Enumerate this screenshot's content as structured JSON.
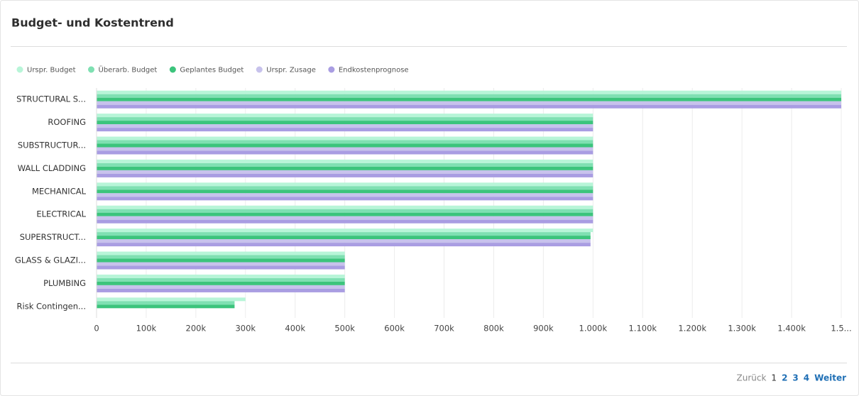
{
  "chart_data": {
    "type": "hbar",
    "title": "Budget- und Kostentrend",
    "categories": [
      "STRUCTURAL S...",
      "ROOFING",
      "SUBSTRUCTUR...",
      "WALL CLADDING",
      "MECHANICAL",
      "ELECTRICAL",
      "SUPERSTRUCT...",
      "GLASS & GLAZI...",
      "PLUMBING",
      "Risk Contingen..."
    ],
    "series": [
      {
        "name": "Urspr. Budget",
        "color": "#b8f5d8",
        "values": [
          1500000,
          1000000,
          1000000,
          1000000,
          1000000,
          1000000,
          1000000,
          500000,
          500000,
          300000
        ]
      },
      {
        "name": "Überarb. Budget",
        "color": "#7fe0b2",
        "values": [
          1500000,
          1000000,
          1000000,
          1000000,
          1000000,
          1000000,
          995000,
          500000,
          500000,
          278000
        ]
      },
      {
        "name": "Geplantes Budget",
        "color": "#3cc47c",
        "values": [
          1500000,
          1000000,
          1000000,
          1000000,
          1000000,
          1000000,
          995000,
          500000,
          500000,
          278000
        ]
      },
      {
        "name": "Urspr. Zusage",
        "color": "#c7c2ec",
        "values": [
          1500000,
          1000000,
          1000000,
          1000000,
          1000000,
          1000000,
          995000,
          500000,
          500000,
          0
        ]
      },
      {
        "name": "Endkostenprognose",
        "color": "#a99de2",
        "values": [
          1500000,
          1000000,
          1000000,
          1000000,
          1000000,
          1000000,
          995000,
          500000,
          500000,
          0
        ]
      }
    ],
    "xlim": [
      0,
      1500000
    ],
    "xticks": [
      0,
      {
        "value": 100000,
        "label": "100k"
      },
      {
        "value": 200000,
        "label": "200k"
      },
      {
        "value": 300000,
        "label": "300k"
      },
      {
        "value": 400000,
        "label": "400k"
      },
      {
        "value": 500000,
        "label": "500k"
      },
      {
        "value": 600000,
        "label": "600k"
      },
      {
        "value": 700000,
        "label": "700k"
      },
      {
        "value": 800000,
        "label": "800k"
      },
      {
        "value": 900000,
        "label": "900k"
      },
      {
        "value": 1000000,
        "label": "1.000k"
      },
      {
        "value": 1100000,
        "label": "1.100k"
      },
      {
        "value": 1200000,
        "label": "1.200k"
      },
      {
        "value": 1300000,
        "label": "1.300k"
      },
      {
        "value": 1400000,
        "label": "1.400k"
      },
      {
        "value": 1500000,
        "label": "1.5..."
      }
    ],
    "grid": true,
    "legend": "top-left"
  },
  "pagination": {
    "previous": "Zurück",
    "pages": [
      "1",
      "2",
      "3",
      "4"
    ],
    "next": "Weiter"
  }
}
